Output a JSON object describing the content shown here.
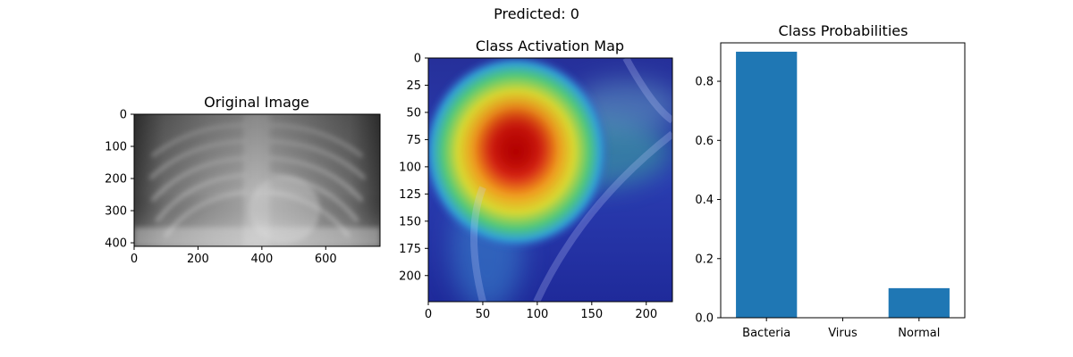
{
  "figure": {
    "suptitle": "Predicted: 0"
  },
  "panels": {
    "original": {
      "title": "Original Image",
      "x_ticks": [
        "0",
        "200",
        "400",
        "600"
      ],
      "y_ticks": [
        "0",
        "100",
        "200",
        "300",
        "400"
      ]
    },
    "cam": {
      "title": "Class Activation Map",
      "x_ticks": [
        "0",
        "50",
        "100",
        "150",
        "200"
      ],
      "y_ticks": [
        "0",
        "25",
        "50",
        "75",
        "100",
        "125",
        "150",
        "175",
        "200"
      ]
    }
  },
  "chart_data": {
    "type": "bar",
    "title": "Class Probabilities",
    "categories": [
      "Bacteria",
      "Virus",
      "Normal"
    ],
    "values": [
      0.9,
      0.0,
      0.1
    ],
    "ylim": [
      0,
      0.93
    ],
    "yticks": [
      0.0,
      0.2,
      0.4,
      0.6,
      0.8
    ],
    "xlabel": "",
    "ylabel": "",
    "grid": false,
    "bar_color": "#1f77b4"
  }
}
